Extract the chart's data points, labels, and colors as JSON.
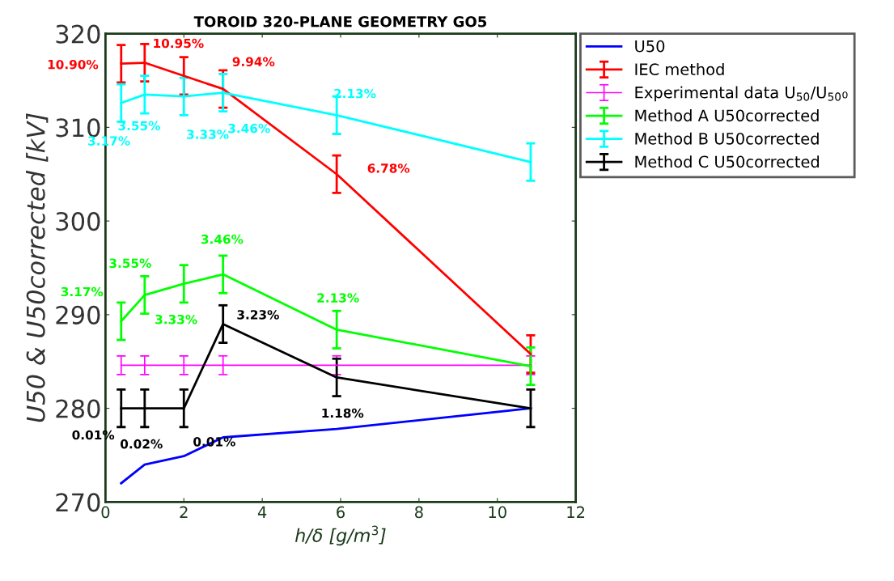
{
  "chart_data": {
    "type": "line",
    "title": "TOROID 320-PLANE GEOMETRY GO5",
    "xlabel": "h/δ [g/m$^{3}$]",
    "ylabel": "U50 & U50corrected [kV]",
    "xlim": [
      0,
      12
    ],
    "xticks": [
      0,
      2,
      4,
      6,
      8,
      10,
      12
    ],
    "ylim": [
      270,
      320
    ],
    "yticks": [
      270,
      280,
      290,
      300,
      310,
      320
    ],
    "grid": false,
    "legend": "top right",
    "marker": "none",
    "line_style": "solid",
    "x": [
      0.4,
      1,
      2,
      3,
      5.9,
      10.85
    ],
    "series": [
      {
        "name": "U50",
        "color": "#0000ff",
        "values": [
          272.0,
          274.0,
          274.9,
          276.9,
          277.8,
          280.0
        ]
      },
      {
        "name": "IEC method",
        "color": "#ff0000",
        "values": [
          316.8,
          316.9,
          315.5,
          314.1,
          305.0,
          285.8
        ],
        "errors": [
          2,
          2,
          2,
          2,
          2,
          2
        ]
      },
      {
        "name": "Experimental data U$_{50}$/U$_{50}$₀",
        "color": "#ff00ff",
        "values": [
          284.6,
          284.6,
          284.6,
          284.6,
          284.6,
          284.6
        ],
        "errors": [
          1,
          1,
          1,
          1,
          1,
          1
        ]
      },
      {
        "name": "Method A U50corrected",
        "color": "#00ff00",
        "values": [
          289.3,
          292.1,
          293.3,
          294.3,
          288.4,
          284.5
        ],
        "errors": [
          2,
          2,
          2,
          2,
          2,
          2
        ]
      },
      {
        "name": "Method B U50corrected",
        "color": "#00ffff",
        "values": [
          312.6,
          313.5,
          313.3,
          313.7,
          311.3,
          306.3
        ],
        "errors": [
          2,
          2,
          2,
          2,
          2,
          2
        ]
      },
      {
        "name": "Method C U50corrected",
        "color": "#000000",
        "values": [
          280.0,
          280.0,
          280.0,
          289.0,
          283.3,
          280.0
        ],
        "errors": [
          2,
          2,
          2,
          2,
          2,
          2
        ]
      }
    ],
    "annotations": [
      {
        "text": "10.90%",
        "x": 0.4,
        "y": 316.8
      },
      {
        "text": "10.95%",
        "x": 1,
        "y": 316.9
      },
      {
        "text": "9.94%",
        "x": 3,
        "y": 314.1
      },
      {
        "text": "6.78%",
        "x": 5.9,
        "y": 305.0
      },
      {
        "text": "3.17%",
        "x": 0.4,
        "y": 312.6
      },
      {
        "text": "3.55%",
        "x": 1,
        "y": 313.5
      },
      {
        "text": "3.33%",
        "x": 2,
        "y": 313.3
      },
      {
        "text": "3.46%",
        "x": 3,
        "y": 313.7
      },
      {
        "text": "2.13%",
        "x": 5.9,
        "y": 311.3
      },
      {
        "text": "3.17%",
        "x": 0.4,
        "y": 289.3
      },
      {
        "text": "3.55%",
        "x": 1,
        "y": 292.1
      },
      {
        "text": "3.33%",
        "x": 2,
        "y": 293.3
      },
      {
        "text": "3.46%",
        "x": 3,
        "y": 294.3
      },
      {
        "text": "2.13%",
        "x": 5.9,
        "y": 288.4
      },
      {
        "text": "0.01%",
        "x": 0.4,
        "y": 280.0
      },
      {
        "text": "0.02%",
        "x": 1,
        "y": 280.0
      },
      {
        "text": "0.01%",
        "x": 2,
        "y": 280.0
      },
      {
        "text": "3.23%",
        "x": 3,
        "y": 289.0
      },
      {
        "text": "1.18%",
        "x": 5.9,
        "y": 283.3
      }
    ]
  }
}
